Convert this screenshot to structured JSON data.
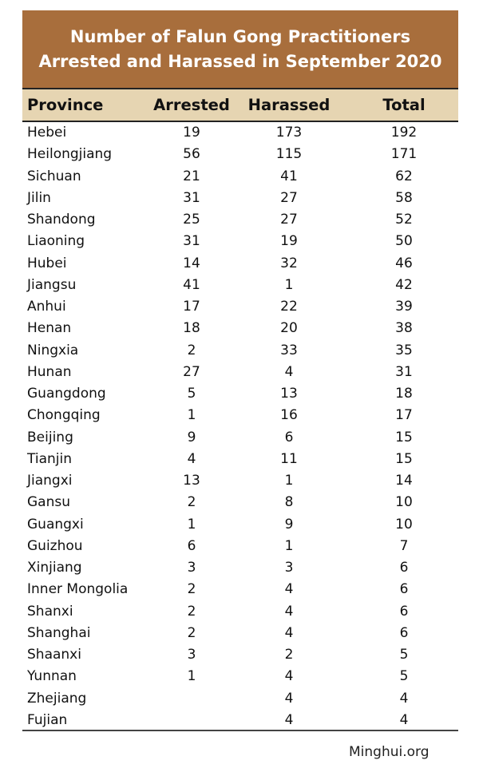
{
  "chart_data": {
    "type": "table",
    "title": [
      "Number of Falun Gong Practitioners",
      "Arrested and Harassed in September 2020"
    ],
    "columns": [
      "Province",
      "Arrested",
      "Harassed",
      "Total"
    ],
    "rows": [
      [
        "Hebei",
        "19",
        "173",
        "192"
      ],
      [
        "Heilongjiang",
        "56",
        "115",
        "171"
      ],
      [
        "Sichuan",
        "21",
        "41",
        "62"
      ],
      [
        "Jilin",
        "31",
        "27",
        "58"
      ],
      [
        "Shandong",
        "25",
        "27",
        "52"
      ],
      [
        "Liaoning",
        "31",
        "19",
        "50"
      ],
      [
        "Hubei",
        "14",
        "32",
        "46"
      ],
      [
        "Jiangsu",
        "41",
        "1",
        "42"
      ],
      [
        "Anhui",
        "17",
        "22",
        "39"
      ],
      [
        "Henan",
        "18",
        "20",
        "38"
      ],
      [
        "Ningxia",
        "2",
        "33",
        "35"
      ],
      [
        "Hunan",
        "27",
        "4",
        "31"
      ],
      [
        "Guangdong",
        "5",
        "13",
        "18"
      ],
      [
        "Chongqing",
        "1",
        "16",
        "17"
      ],
      [
        "Beijing",
        "9",
        "6",
        "15"
      ],
      [
        "Tianjin",
        "4",
        "11",
        "15"
      ],
      [
        "Jiangxi",
        "13",
        "1",
        "14"
      ],
      [
        "Gansu",
        "2",
        "8",
        "10"
      ],
      [
        "Guangxi",
        "1",
        "9",
        "10"
      ],
      [
        "Guizhou",
        "6",
        "1",
        "7"
      ],
      [
        "Xinjiang",
        "3",
        "3",
        "6"
      ],
      [
        "Inner Mongolia",
        "2",
        "4",
        "6"
      ],
      [
        "Shanxi",
        "2",
        "4",
        "6"
      ],
      [
        "Shanghai",
        "2",
        "4",
        "6"
      ],
      [
        "Shaanxi",
        "3",
        "2",
        "5"
      ],
      [
        "Yunnan",
        "1",
        "4",
        "5"
      ],
      [
        "Zhejiang",
        "",
        "4",
        "4"
      ],
      [
        "Fujian",
        "",
        "4",
        "4"
      ]
    ],
    "source": "Minghui.org"
  },
  "colors": {
    "title_bg": "#A86E3C",
    "header_bg": "#E6D5B2",
    "title_text": "#FFFFFF"
  }
}
